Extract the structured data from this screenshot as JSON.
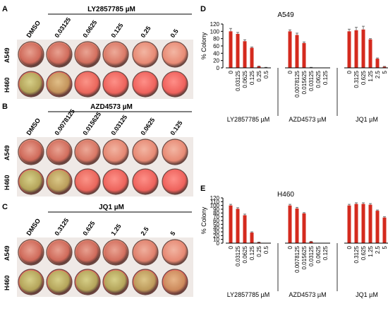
{
  "colors": {
    "bar": "#d42a1e",
    "well_a549": "#cf6a5a",
    "well_h460_live": "#b4a45a",
    "well_h460_dead": "#f0605c",
    "axis": "#000000"
  },
  "plates": [
    {
      "panel_letter": "A",
      "drug_label": "LY2857785 µM",
      "lane_labels": [
        "DMSO",
        "0.03125",
        "0.0625",
        "0.125",
        "0.25",
        "0.5"
      ],
      "rows": [
        {
          "cell_line": "A549",
          "well_viability": [
            1.0,
            0.95,
            0.85,
            0.55,
            0.08,
            0.03
          ]
        },
        {
          "cell_line": "H460",
          "well_viability": [
            1.0,
            0.75,
            0.1,
            0.05,
            0.03,
            0.02
          ]
        }
      ]
    },
    {
      "panel_letter": "B",
      "drug_label": "AZD4573 µM",
      "lane_labels": [
        "DMSO",
        "0.0078125",
        "0.015625",
        "0.03125",
        "0.0625",
        "0.125"
      ],
      "rows": [
        {
          "cell_line": "A549",
          "well_viability": [
            1.0,
            0.9,
            0.65,
            0.15,
            0.08,
            0.05
          ]
        },
        {
          "cell_line": "H460",
          "well_viability": [
            1.0,
            0.9,
            0.1,
            0.05,
            0.04,
            0.03
          ]
        }
      ]
    },
    {
      "panel_letter": "C",
      "drug_label": "JQ1 µM",
      "lane_labels": [
        "DMSO",
        "0.3125",
        "0.625",
        "1.25",
        "2.5",
        "5"
      ],
      "rows": [
        {
          "cell_line": "A549",
          "well_viability": [
            1.0,
            1.0,
            1.0,
            0.85,
            0.35,
            0.1
          ]
        },
        {
          "cell_line": "H460",
          "well_viability": [
            1.0,
            1.0,
            1.0,
            1.0,
            0.85,
            0.6
          ]
        }
      ]
    }
  ],
  "chart_data": [
    {
      "type": "bar",
      "panel_letter": "D",
      "title": "A549",
      "ylabel": "% Colony",
      "ylim": [
        0,
        120
      ],
      "yticks": [
        0,
        20,
        40,
        60,
        80,
        100,
        120
      ],
      "groups": [
        {
          "label": "LY2857785 µM",
          "categories": [
            "0",
            "0.03125",
            "0.0625",
            "0.125",
            "0.25",
            "0.5"
          ],
          "values": [
            100,
            93,
            73,
            55,
            4,
            1
          ],
          "errors": [
            8,
            4,
            4,
            2,
            1,
            0.5
          ]
        },
        {
          "label": "AZD4573 µM",
          "categories": [
            "0",
            "0.0078125",
            "0.015625",
            "0.03125",
            "0.0625",
            "0.125"
          ],
          "values": [
            100,
            90,
            68,
            1,
            0,
            0
          ],
          "errors": [
            4,
            5,
            3,
            0.5,
            0,
            0
          ]
        },
        {
          "label": "JQ1 µM",
          "categories": [
            "0",
            "0.3125",
            "0.625",
            "1.25",
            "2.5",
            "5"
          ],
          "values": [
            100,
            103,
            105,
            78,
            25,
            3
          ],
          "errors": [
            6,
            8,
            9,
            2,
            2,
            1
          ]
        }
      ]
    },
    {
      "type": "bar",
      "panel_letter": "E",
      "title": "H460",
      "ylabel": "% Colony",
      "ylim": [
        0,
        120
      ],
      "yticks": [
        0,
        10,
        20,
        30,
        40,
        50,
        60,
        70,
        80,
        90,
        100,
        110,
        120
      ],
      "groups": [
        {
          "label": "LY2857785 µM",
          "categories": [
            "0",
            "0.03125",
            "0.0625",
            "0.125",
            "0.25",
            "0.5"
          ],
          "values": [
            100,
            91,
            74,
            28,
            2,
            0
          ],
          "errors": [
            3,
            3,
            3,
            2,
            1,
            0
          ]
        },
        {
          "label": "AZD4573 µM",
          "categories": [
            "0",
            "0.0078125",
            "0.015625",
            "0.03125",
            "0.0625",
            "0.125"
          ],
          "values": [
            100,
            92,
            79,
            4,
            0,
            0
          ],
          "errors": [
            3,
            3,
            2,
            1,
            0,
            0
          ]
        },
        {
          "label": "JQ1 µM",
          "categories": [
            "0",
            "0.3125",
            "0.625",
            "1.25",
            "2.5",
            "5"
          ],
          "values": [
            100,
            104,
            104,
            102,
            86,
            68
          ],
          "errors": [
            3,
            3,
            3,
            3,
            2,
            2
          ]
        }
      ]
    }
  ]
}
